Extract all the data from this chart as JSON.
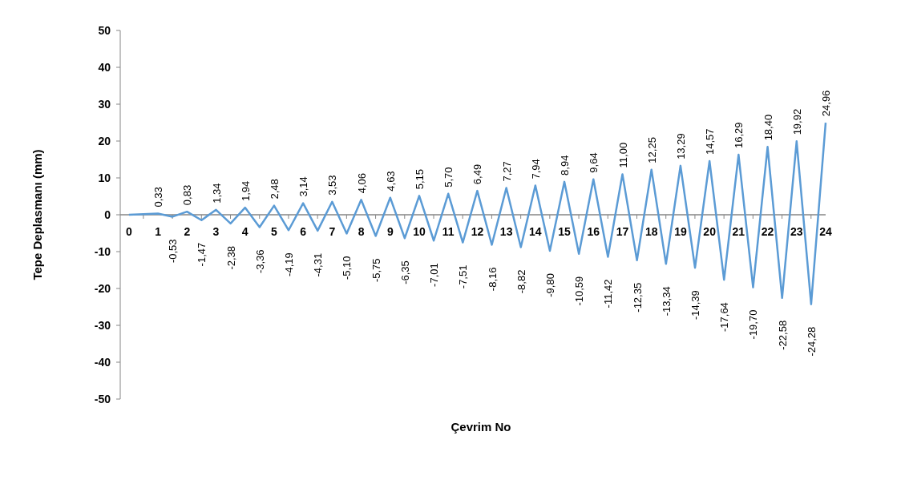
{
  "chart_data": {
    "type": "line",
    "xlabel": "Çevrim No",
    "ylabel": "Tepe Deplasmanı (mm)",
    "xlim": [
      -0.3,
      24
    ],
    "xticks": [
      0,
      1,
      2,
      3,
      4,
      5,
      6,
      7,
      8,
      9,
      10,
      11,
      12,
      13,
      14,
      15,
      16,
      17,
      18,
      19,
      20,
      21,
      22,
      23,
      24
    ],
    "ylim": [
      -50,
      50
    ],
    "yticks": [
      -50,
      -40,
      -30,
      -20,
      -10,
      0,
      10,
      20,
      30,
      40,
      50
    ],
    "grid": false,
    "marker": "none",
    "line_style": "solid",
    "series": [
      {
        "color": "#5b9bd5",
        "x": [
          0,
          1,
          1.5,
          2,
          2.5,
          3,
          3.5,
          4,
          4.5,
          5,
          5.5,
          6,
          6.5,
          7,
          7.5,
          8,
          8.5,
          9,
          9.5,
          10,
          10.5,
          11,
          11.5,
          12,
          12.5,
          13,
          13.5,
          14,
          14.5,
          15,
          15.5,
          16,
          16.5,
          17,
          17.5,
          18,
          18.5,
          19,
          19.5,
          20,
          20.5,
          21,
          21.5,
          22,
          22.5,
          23,
          23.5,
          24
        ],
        "values": [
          0,
          0.33,
          -0.53,
          0.83,
          -1.47,
          1.34,
          -2.38,
          1.94,
          -3.36,
          2.48,
          -4.19,
          3.14,
          -4.31,
          3.53,
          -5.1,
          4.06,
          -5.75,
          4.63,
          -6.35,
          5.15,
          -7.01,
          5.7,
          -7.51,
          6.49,
          -8.16,
          7.27,
          -8.82,
          7.94,
          -9.8,
          8.94,
          -10.59,
          9.64,
          -11.42,
          11.0,
          -12.35,
          12.25,
          -13.34,
          13.29,
          -14.39,
          14.57,
          -17.64,
          16.29,
          -19.7,
          18.4,
          -22.58,
          19.92,
          -24.28,
          24.96
        ],
        "value_labels": [
          null,
          "0,33",
          "-0,53",
          "0,83",
          "-1,47",
          "1,34",
          "-2,38",
          "1,94",
          "-3,36",
          "2,48",
          "-4,19",
          "3,14",
          "-4,31",
          "3,53",
          "-5,10",
          "4,06",
          "-5,75",
          "4,63",
          "-6,35",
          "5,15",
          "-7,01",
          "5,70",
          "-7,51",
          "6,49",
          "-8,16",
          "7,27",
          "-8,82",
          "7,94",
          "-9,80",
          "8,94",
          "-10,59",
          "9,64",
          "-11,42",
          "11,00",
          "-12,35",
          "12,25",
          "-13,34",
          "13,29",
          "-14,39",
          "14,57",
          "-17,64",
          "16,29",
          "-19,70",
          "18,40",
          "-22,58",
          "19,92",
          "-24,28",
          "24,96"
        ]
      }
    ]
  }
}
